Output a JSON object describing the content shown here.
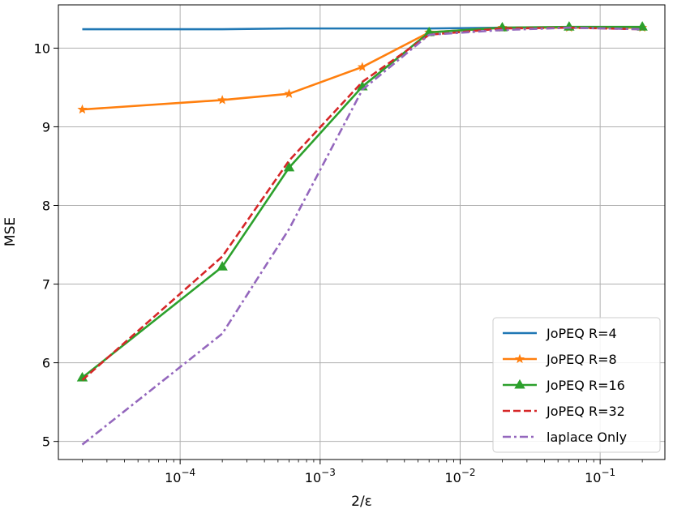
{
  "chart_data": {
    "type": "line",
    "xlabel": "2/ε",
    "ylabel": "MSE",
    "xscale": "log",
    "xlim": [
      1.35e-05,
      0.29
    ],
    "ylim": [
      4.77,
      10.55
    ],
    "x_ticks": [
      {
        "value": 0.0001,
        "base": "10",
        "exp": "−4"
      },
      {
        "value": 0.001,
        "base": "10",
        "exp": "−3"
      },
      {
        "value": 0.01,
        "base": "10",
        "exp": "−2"
      },
      {
        "value": 0.1,
        "base": "10",
        "exp": "−1"
      }
    ],
    "y_ticks": [
      5,
      6,
      7,
      8,
      9,
      10
    ],
    "grid": true,
    "legend": "bottom-right",
    "series": [
      {
        "name": "JoPEQ R=4",
        "color": "#1f77b4",
        "line": "solid",
        "marker": "none",
        "x": [
          2e-05,
          0.0002,
          0.0006,
          0.002,
          0.006,
          0.02,
          0.06,
          0.2
        ],
        "y": [
          10.24,
          10.24,
          10.25,
          10.25,
          10.25,
          10.26,
          10.26,
          10.26
        ]
      },
      {
        "name": "JoPEQ R=8",
        "color": "#ff7f0e",
        "line": "solid",
        "marker": "star",
        "x": [
          2e-05,
          0.0002,
          0.0006,
          0.002,
          0.006,
          0.02,
          0.06,
          0.2
        ],
        "y": [
          9.22,
          9.34,
          9.42,
          9.76,
          10.2,
          10.26,
          10.26,
          10.26
        ]
      },
      {
        "name": "JoPEQ R=16",
        "color": "#2ca02c",
        "line": "solid",
        "marker": "triangle",
        "x": [
          2e-05,
          0.0002,
          0.0006,
          0.002,
          0.006,
          0.02,
          0.06,
          0.2
        ],
        "y": [
          5.81,
          7.22,
          8.48,
          9.51,
          10.2,
          10.26,
          10.27,
          10.27
        ]
      },
      {
        "name": "JoPEQ R=32",
        "color": "#d62728",
        "line": "dashed",
        "marker": "none",
        "x": [
          2e-05,
          0.0002,
          0.0006,
          0.002,
          0.006,
          0.02,
          0.06,
          0.2
        ],
        "y": [
          5.78,
          7.35,
          8.57,
          9.57,
          10.17,
          10.25,
          10.26,
          10.24
        ]
      },
      {
        "name": "laplace Only",
        "color": "#9467bd",
        "line": "dashdot",
        "marker": "none",
        "x": [
          2e-05,
          0.0002,
          0.0006,
          0.002,
          0.006,
          0.02,
          0.06,
          0.2
        ],
        "y": [
          4.96,
          6.37,
          7.7,
          9.47,
          10.17,
          10.23,
          10.26,
          10.24
        ]
      }
    ]
  }
}
